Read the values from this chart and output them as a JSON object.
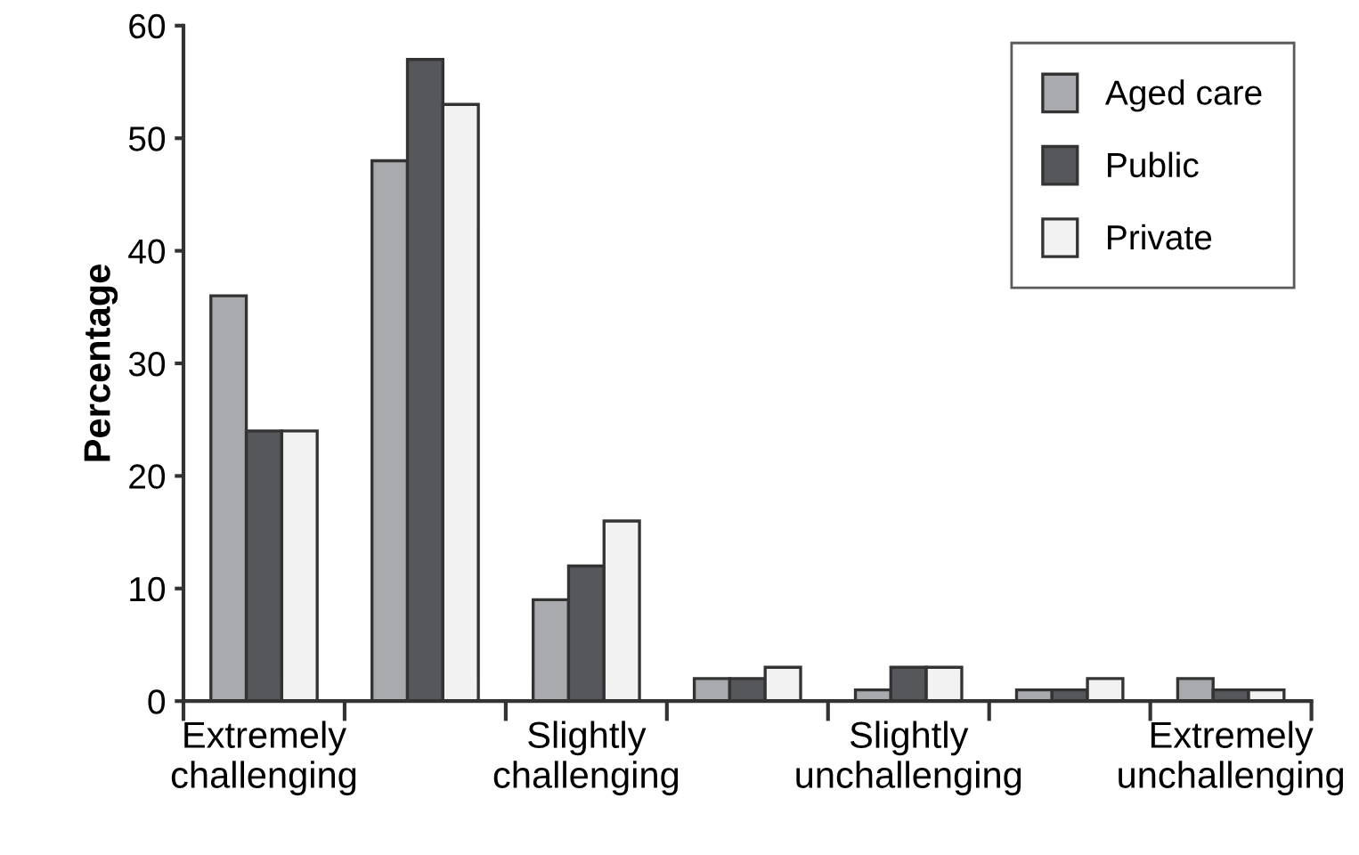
{
  "chart_data": {
    "type": "bar",
    "ylabel": "Percentage",
    "categories": [
      "Extremely\nchallenging",
      null,
      "Slightly\nchallenging",
      null,
      "Slightly\nunchallenging",
      null,
      "Extremely\nunchallenging"
    ],
    "series": [
      {
        "name": "Aged care",
        "color": "#a9aaad",
        "values": [
          36,
          48,
          9,
          2,
          1,
          1,
          2
        ]
      },
      {
        "name": "Public",
        "color": "#56575b",
        "values": [
          24,
          57,
          12,
          2,
          3,
          1,
          1
        ]
      },
      {
        "name": "Private",
        "color": "#f2f2f2",
        "values": [
          24,
          53,
          16,
          3,
          3,
          2,
          1
        ]
      }
    ],
    "ylim": [
      0,
      60
    ],
    "yticks": [
      0,
      10,
      20,
      30,
      40,
      50,
      60
    ],
    "grid": false,
    "legend": "top right"
  }
}
